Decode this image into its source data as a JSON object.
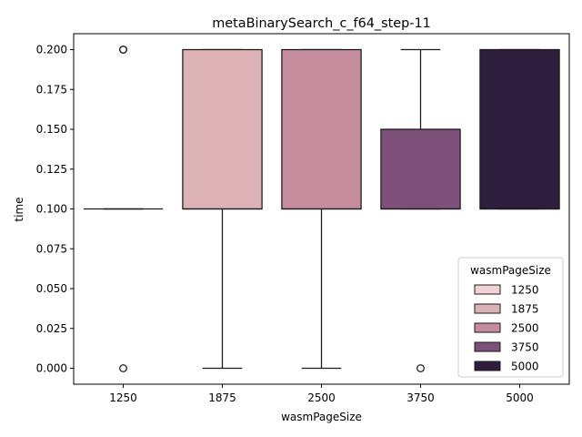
{
  "chart_data": {
    "type": "box",
    "title": "metaBinarySearch_c_f64_step-11",
    "xlabel": "wasmPageSize",
    "ylabel": "time",
    "ylim": [
      -0.01,
      0.21
    ],
    "yticks": [
      "0.000",
      "0.025",
      "0.050",
      "0.075",
      "0.100",
      "0.125",
      "0.150",
      "0.175",
      "0.200"
    ],
    "ytick_values": [
      0,
      0.025,
      0.05,
      0.075,
      0.1,
      0.125,
      0.15,
      0.175,
      0.2
    ],
    "categories": [
      "1250",
      "1875",
      "2500",
      "3750",
      "5000"
    ],
    "grid": false,
    "legend": {
      "title": "wasmPageSize",
      "placement": "lower-right",
      "entries": [
        "1250",
        "1875",
        "2500",
        "3750",
        "5000"
      ]
    },
    "colors": [
      "#efd3d7",
      "#dcb2b7",
      "#c48c9d",
      "#7d5079",
      "#2d1e3d"
    ],
    "boxes": [
      {
        "category": "1250",
        "q1": 0.1,
        "median": 0.1,
        "q3": 0.1,
        "whisker_low": 0.1,
        "whisker_high": 0.1,
        "outliers": [
          0.2,
          0.2,
          0.0
        ]
      },
      {
        "category": "1875",
        "q1": 0.1,
        "median": 0.1,
        "q3": 0.2,
        "whisker_low": 0.0,
        "whisker_high": 0.2,
        "outliers": []
      },
      {
        "category": "2500",
        "q1": 0.1,
        "median": 0.1,
        "q3": 0.2,
        "whisker_low": 0.0,
        "whisker_high": 0.2,
        "outliers": []
      },
      {
        "category": "3750",
        "q1": 0.1,
        "median": 0.1,
        "q3": 0.15,
        "whisker_low": 0.1,
        "whisker_high": 0.2,
        "outliers": [
          0.0
        ]
      },
      {
        "category": "5000",
        "q1": 0.1,
        "median": 0.1,
        "q3": 0.2,
        "whisker_low": 0.1,
        "whisker_high": 0.2,
        "outliers": []
      }
    ]
  }
}
